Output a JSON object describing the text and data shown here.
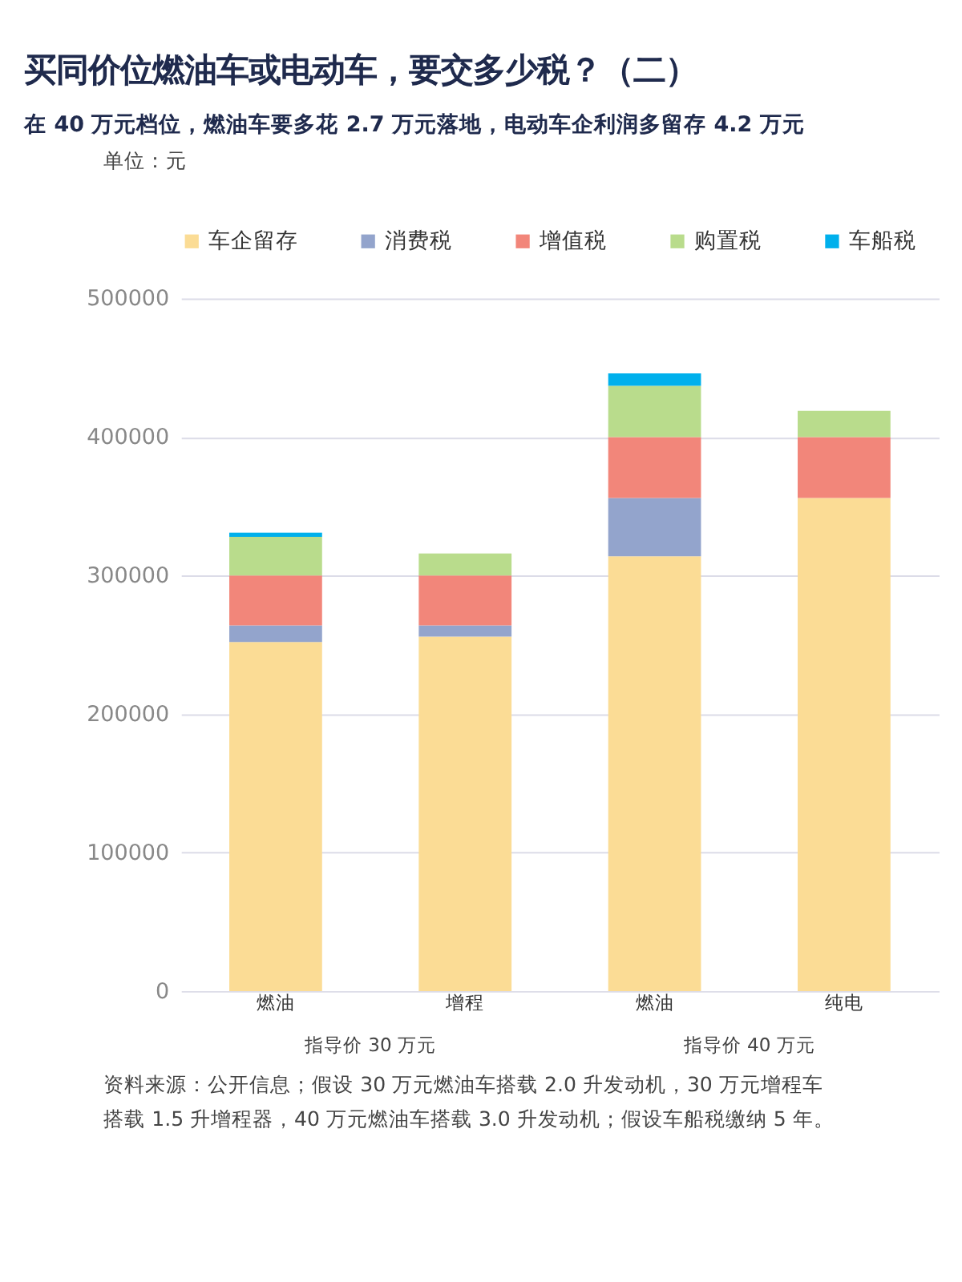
{
  "chart_data": {
    "type": "bar",
    "stacked": true,
    "title": "买同价位燃油车或电动车，要交多少税？（二）",
    "subtitle": "在 40 万元档位，燃油车要多花 2.7 万元落地，电动车企利润多留存 4.2 万元",
    "categories": [
      "燃油",
      "增程",
      "燃油",
      "纯电"
    ],
    "series": [
      {
        "name": "车企留存",
        "color": "#fbdc95",
        "values": [
          252000,
          256000,
          314000,
          356000
        ]
      },
      {
        "name": "消费税",
        "color": "#93a4cc",
        "values": [
          12000,
          8000,
          42000,
          0
        ]
      },
      {
        "name": "增值税",
        "color": "#f2867a",
        "values": [
          36000,
          36000,
          44000,
          44000
        ]
      },
      {
        "name": "购置税",
        "color": "#b9dc8c",
        "values": [
          28000,
          16000,
          37000,
          19000
        ]
      },
      {
        "name": "车船税",
        "color": "#00b0ec",
        "values": [
          3000,
          0,
          9000,
          0
        ]
      }
    ],
    "ylim": [
      0,
      500000
    ],
    "yticks": [
      0,
      100000,
      200000,
      300000,
      400000,
      500000
    ],
    "grid": "y",
    "legend": "top",
    "annotations": [
      "单位：元",
      "指导价 30 万元",
      "指导价 40 万元",
      "资料来源：公开信息；假设 30 万元燃油车搭载 2.0 升发动机，30 万元增程车",
      "搭载 1.5 升增程器，40 万元燃油车搭载 3.0 升发动机；假设车船税缴纳 5 年。"
    ]
  }
}
